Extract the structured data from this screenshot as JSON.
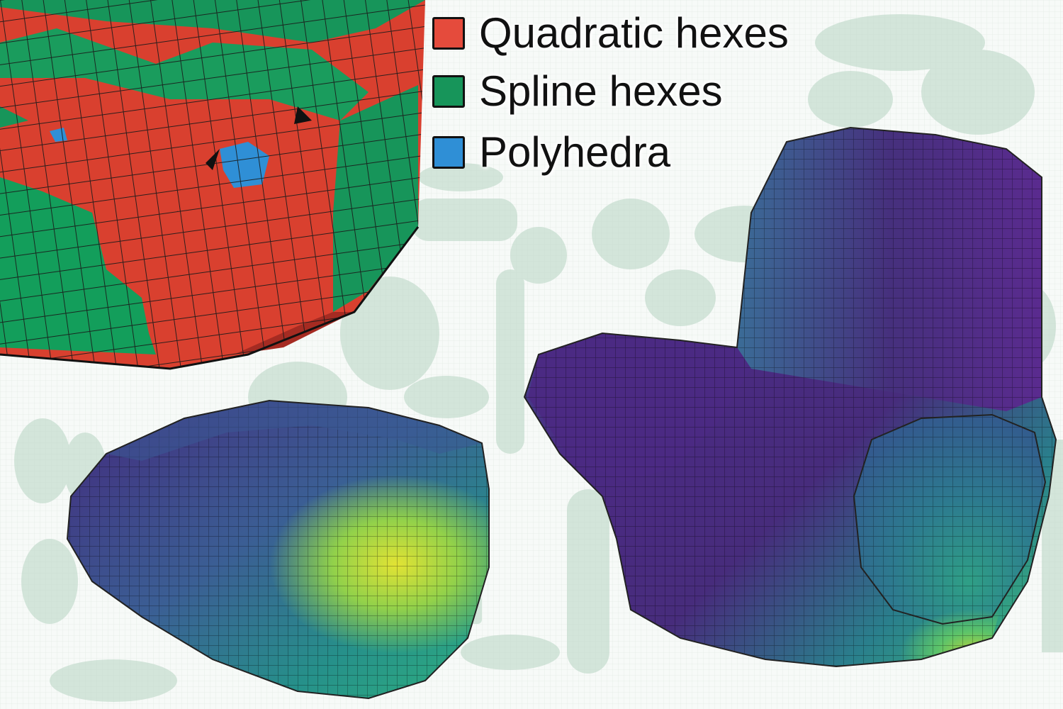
{
  "legend": {
    "items": [
      {
        "label": "Quadratic hexes",
        "color": "#e54b3c"
      },
      {
        "label": "Spline hexes",
        "color": "#17955a"
      },
      {
        "label": "Polyhedra",
        "color": "#2f8fd6"
      }
    ]
  },
  "colors": {
    "quad_hex": "#e54b3c",
    "spline_hex": "#17955a",
    "polyhedra": "#2f8fd6",
    "viridis_low": "#4b1f7a",
    "viridis_mid": "#27808e",
    "viridis_high": "#dfe32d",
    "ghost_background": "#b7d4c2"
  }
}
